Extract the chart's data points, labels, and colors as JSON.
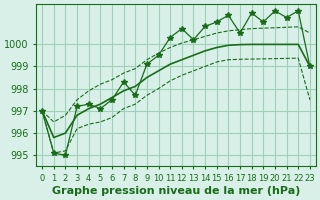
{
  "xlabel": "Graphe pression niveau de la mer (hPa)",
  "hours": [
    0,
    1,
    2,
    3,
    4,
    5,
    6,
    7,
    8,
    9,
    10,
    11,
    12,
    13,
    14,
    15,
    16,
    17,
    18,
    19,
    20,
    21,
    22,
    23
  ],
  "pressure": [
    997.0,
    995.1,
    995.0,
    997.2,
    997.3,
    997.1,
    997.5,
    998.3,
    997.7,
    999.1,
    999.5,
    1000.3,
    1000.7,
    1000.2,
    1000.8,
    1001.0,
    1001.3,
    1000.5,
    1001.4,
    1001.0,
    1001.5,
    1001.2,
    1001.5,
    999.0
  ],
  "smooth_line": [
    997.0,
    995.8,
    996.0,
    996.8,
    997.1,
    997.3,
    997.6,
    997.9,
    998.1,
    998.5,
    998.8,
    999.1,
    999.3,
    999.5,
    999.7,
    999.85,
    999.95,
    999.98,
    999.99,
    999.99,
    999.99,
    999.99,
    999.99,
    999.0
  ],
  "upper_line": [
    997.0,
    996.5,
    996.8,
    997.5,
    997.9,
    998.2,
    998.4,
    998.7,
    998.9,
    999.3,
    999.6,
    999.85,
    1000.05,
    1000.2,
    1000.35,
    1000.5,
    1000.6,
    1000.65,
    1000.7,
    1000.72,
    1000.74,
    1000.76,
    1000.78,
    1000.5
  ],
  "lower_line": [
    997.0,
    995.1,
    995.2,
    996.2,
    996.4,
    996.5,
    996.7,
    997.1,
    997.3,
    997.7,
    998.0,
    998.35,
    998.6,
    998.8,
    999.0,
    999.2,
    999.3,
    999.32,
    999.33,
    999.34,
    999.35,
    999.36,
    999.37,
    997.5
  ],
  "line_color": "#1a6b1a",
  "bg_color": "#d8f0e8",
  "grid_color": "#a0d0b8",
  "ylim": [
    994.5,
    1001.8
  ],
  "yticks": [
    995,
    996,
    997,
    998,
    999,
    1000
  ],
  "tick_fontsize": 7,
  "label_fontsize": 8
}
